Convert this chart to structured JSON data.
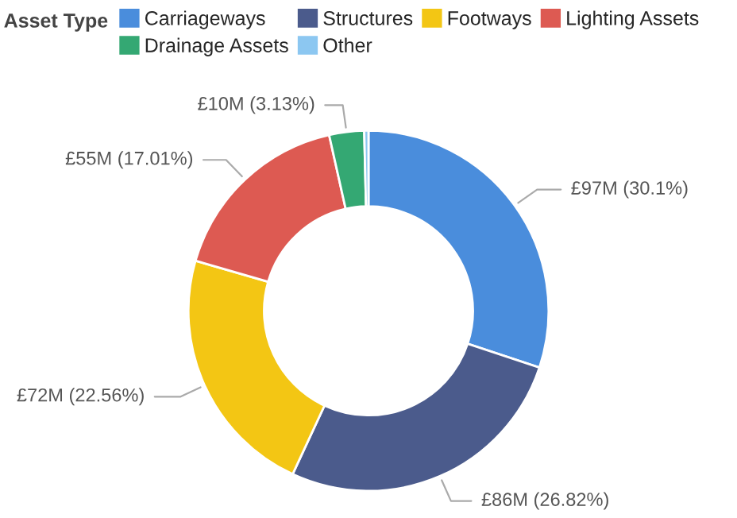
{
  "chart_data": {
    "type": "donut",
    "legend_title": "Asset Type",
    "legend": "top",
    "categories": [
      "Carriageways",
      "Structures",
      "Footways",
      "Lighting Assets",
      "Drainage Assets",
      "Other"
    ],
    "values": [
      30.1,
      26.82,
      22.56,
      17.01,
      3.13,
      0.38
    ],
    "colors": [
      "#4a8ddc",
      "#4b5b8c",
      "#f3c614",
      "#dd5a52",
      "#34a873",
      "#8cc7f1"
    ],
    "value_labels": [
      "£97M (30.1%)",
      "£86M (26.82%)",
      "£72M (22.56%)",
      "£55M (17.01%)",
      "£10M (3.13%)",
      null
    ]
  }
}
